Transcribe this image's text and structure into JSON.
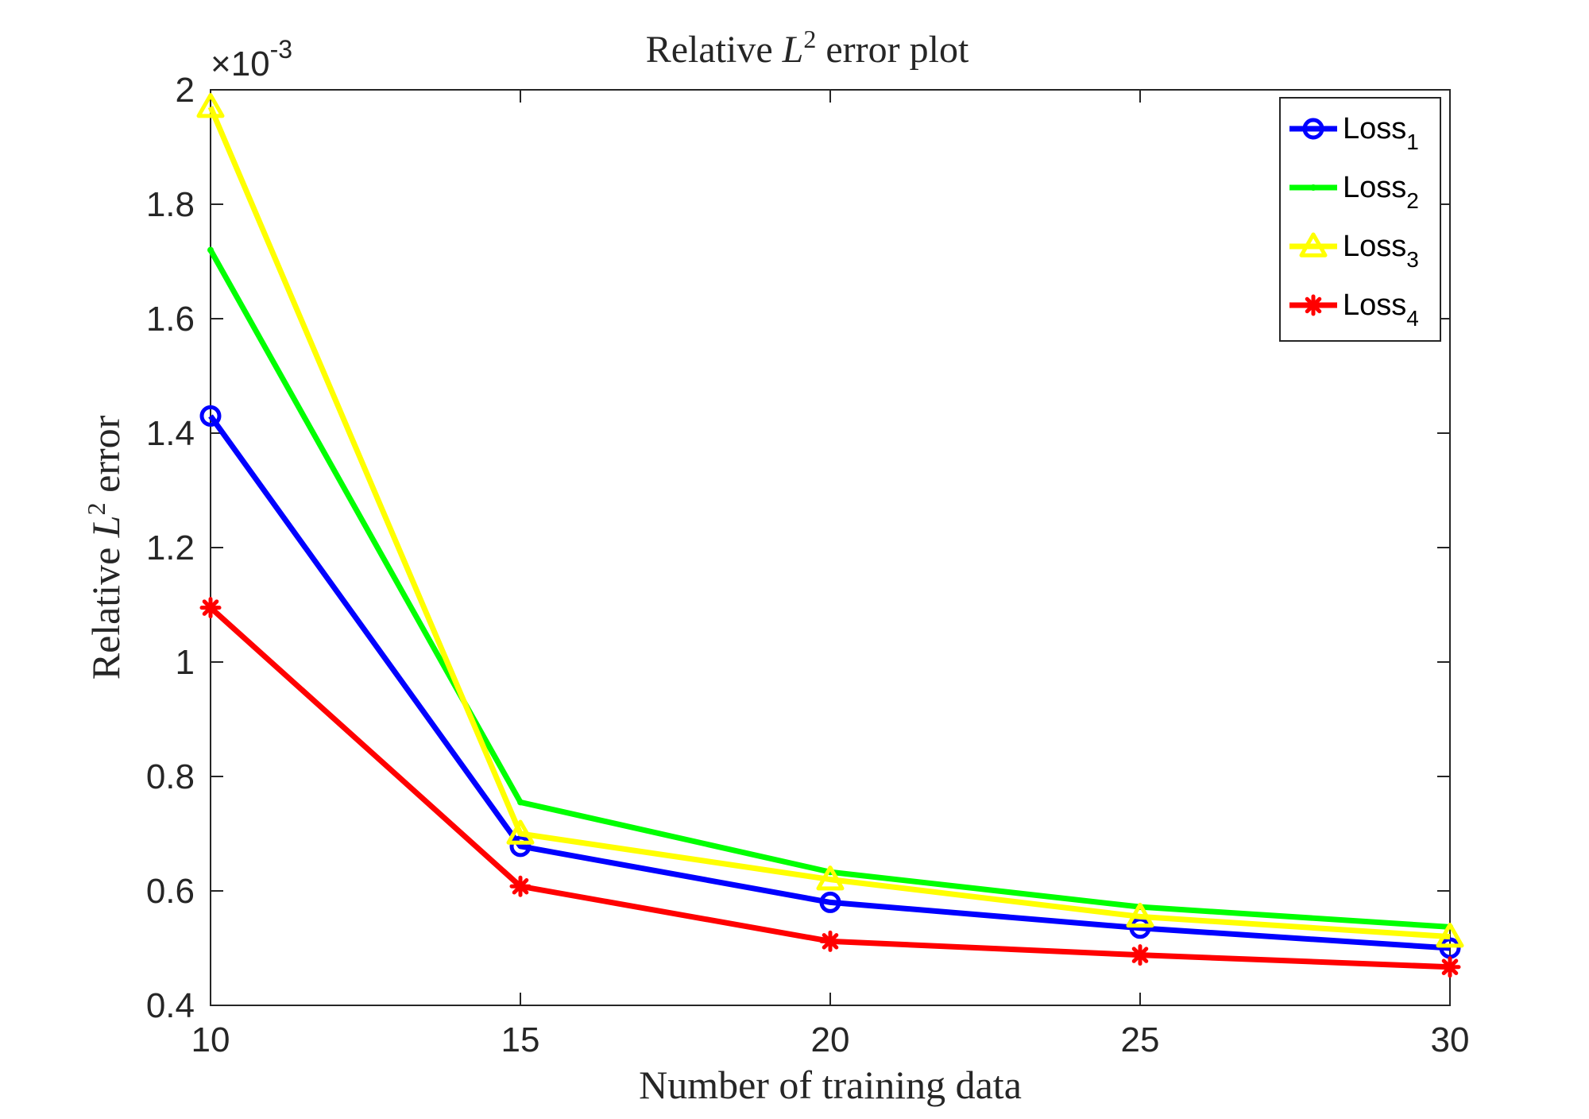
{
  "chart_data": {
    "type": "line",
    "title": {
      "prefix": "Relative ",
      "symbol": "L",
      "sup": "2",
      "suffix": " error plot"
    },
    "xlabel": "Number of training data",
    "ylabel": {
      "prefix": "Relative ",
      "symbol": "L",
      "sup": "2",
      "suffix": " error"
    },
    "y_exponent_label": {
      "times": "×10",
      "exp": "-3"
    },
    "x": [
      10,
      15,
      20,
      25,
      30
    ],
    "xlim": [
      10,
      30
    ],
    "ylim": [
      0.4,
      2.0
    ],
    "y_units_scale": "1e-3",
    "xticks": [
      "10",
      "15",
      "20",
      "25",
      "30"
    ],
    "yticks": [
      "0.4",
      "0.6",
      "0.8",
      "1",
      "1.2",
      "1.4",
      "1.6",
      "1.8",
      "2"
    ],
    "grid": false,
    "legend_position": "top-right",
    "series": [
      {
        "name": "Loss",
        "sub": "1",
        "color": "#0000ff",
        "marker": "circle",
        "values": [
          1.43,
          0.678,
          0.58,
          0.535,
          0.5
        ]
      },
      {
        "name": "Loss",
        "sub": "2",
        "color": "#00ff00",
        "marker": "point",
        "values": [
          1.72,
          0.755,
          0.633,
          0.572,
          0.537
        ]
      },
      {
        "name": "Loss",
        "sub": "3",
        "color": "#ffff00",
        "marker": "triangle",
        "values": [
          1.97,
          0.7,
          0.62,
          0.555,
          0.52
        ]
      },
      {
        "name": "Loss",
        "sub": "4",
        "color": "#ff0000",
        "marker": "asterisk",
        "values": [
          1.095,
          0.608,
          0.512,
          0.488,
          0.467
        ]
      }
    ]
  }
}
